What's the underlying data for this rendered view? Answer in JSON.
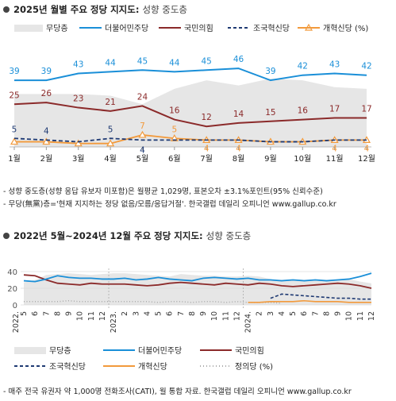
{
  "chart1": {
    "title": "2025년 월별 주요 정당 지지도:",
    "subtitle": "성향 중도층",
    "legend": [
      "무당층",
      "더불어민주당",
      "국민의힘",
      "조국혁신당",
      "개혁신당 (%)"
    ],
    "notes": [
      "- 성향 중도층(성향 응답 유보자 미포함)은 월평균 1,029명, 표본오차 ±3.1%포인트(95% 신뢰수준)",
      "- 무당(無黨)층='현재 지지하는 정당 없음/모름/응답거절'. 한국갤럽 데일리 오피니언 www.gallup.co.kr"
    ]
  },
  "chart2": {
    "title": "2022년 5월~2024년 12월 주요 정당 지지도:",
    "subtitle": "성향 중도층",
    "legend": [
      "무당층",
      "더불어민주당",
      "국민의힘",
      "조국혁신당",
      "개혁신당",
      "정의당 (%)"
    ],
    "notes": [
      "- 매주 전국 유권자 약 1,000명 전화조사(CATI), 월 통합 자료. 한국갤럽 데일리 오피니언 www.gallup.co.kr"
    ]
  },
  "colors": {
    "minju": "#1a8fd8",
    "ppp": "#8b2a2a",
    "rebuild": "#1f3a73",
    "reform": "#f29a3c",
    "justice": "#aaaaaa",
    "nonparty": "#e6e6e6"
  },
  "chart_data": [
    {
      "type": "line",
      "title": "2025년 월별 주요 정당 지지도: 성향 중도층",
      "categories": [
        "1월",
        "2월",
        "3월",
        "4월",
        "5월",
        "6월",
        "7월",
        "8월",
        "9월",
        "10월",
        "11월",
        "12월"
      ],
      "series": [
        {
          "name": "무당층",
          "type": "area",
          "values": [
            31,
            31,
            31,
            30,
            25,
            34,
            39,
            36,
            40,
            39,
            35,
            34
          ]
        },
        {
          "name": "더불어민주당",
          "values": [
            39,
            39,
            43,
            44,
            45,
            44,
            45,
            46,
            39,
            42,
            43,
            42
          ]
        },
        {
          "name": "국민의힘",
          "values": [
            25,
            26,
            23,
            21,
            24,
            16,
            12,
            14,
            15,
            16,
            17,
            17
          ]
        },
        {
          "name": "조국혁신당",
          "values": [
            5,
            4,
            3,
            5,
            4,
            4,
            4,
            4,
            3,
            3,
            4,
            4
          ]
        },
        {
          "name": "개혁신당",
          "values": [
            3,
            3,
            2,
            2,
            7,
            5,
            4,
            4,
            3,
            3,
            4,
            4
          ]
        }
      ],
      "data_labels": {
        "더불어민주당": [
          39,
          39,
          43,
          44,
          45,
          44,
          45,
          46,
          39,
          42,
          43,
          42
        ],
        "국민의힘": [
          25,
          26,
          23,
          21,
          24,
          16,
          12,
          14,
          15,
          16,
          17,
          17
        ],
        "조국혁신당": [
          5,
          4,
          null,
          5,
          4,
          null,
          null,
          null,
          null,
          null,
          null,
          null
        ],
        "개혁신당": [
          null,
          null,
          null,
          null,
          7,
          5,
          4,
          4,
          null,
          null,
          4,
          4
        ]
      },
      "legend_position": "top",
      "unit": "%"
    },
    {
      "type": "line",
      "title": "2022년 5월~2024년 12월 주요 정당 지지도: 성향 중도층",
      "yticks": [
        0,
        20,
        40
      ],
      "ylim": [
        0,
        40
      ],
      "x_labels": [
        "5",
        "6",
        "7",
        "8",
        "9",
        "10",
        "11",
        "12",
        "2",
        "3",
        "4",
        "5",
        "6",
        "7",
        "8",
        "9",
        "10",
        "11",
        "12",
        "2",
        "3",
        "4",
        "5",
        "6",
        "7",
        "8",
        "9",
        "10",
        "11",
        "12"
      ],
      "x_year_labels": [
        "2022.",
        "2023.",
        "2024."
      ],
      "categories": [
        "2022.5",
        "2022.6",
        "2022.7",
        "2022.8",
        "2022.9",
        "2022.10",
        "2022.11",
        "2022.12",
        "2023.1",
        "2023.2",
        "2023.3",
        "2023.4",
        "2023.5",
        "2023.6",
        "2023.7",
        "2023.8",
        "2023.9",
        "2023.10",
        "2023.11",
        "2023.12",
        "2024.1",
        "2024.2",
        "2024.3",
        "2024.4",
        "2024.5",
        "2024.6",
        "2024.7",
        "2024.8",
        "2024.9",
        "2024.10",
        "2024.11",
        "2024.12"
      ],
      "series": [
        {
          "name": "무당층",
          "type": "area",
          "values": [
            27,
            30,
            36,
            37,
            38,
            37,
            36,
            37,
            38,
            38,
            37,
            36,
            35,
            34,
            37,
            36,
            35,
            35,
            34,
            34,
            35,
            34,
            31,
            28,
            30,
            29,
            29,
            30,
            30,
            31,
            28,
            26
          ]
        },
        {
          "name": "더불어민주당",
          "values": [
            29,
            28,
            31,
            35,
            33,
            32,
            32,
            31,
            31,
            32,
            30,
            31,
            33,
            31,
            30,
            29,
            32,
            33,
            32,
            31,
            32,
            30,
            30,
            29,
            30,
            29,
            30,
            29,
            30,
            31,
            34,
            38
          ]
        },
        {
          "name": "국민의힘",
          "values": [
            36,
            35,
            30,
            26,
            25,
            24,
            26,
            25,
            25,
            25,
            24,
            23,
            24,
            26,
            27,
            26,
            25,
            24,
            26,
            25,
            24,
            26,
            25,
            23,
            22,
            23,
            24,
            25,
            26,
            25,
            23,
            20
          ]
        },
        {
          "name": "조국혁신당",
          "values": [
            null,
            null,
            null,
            null,
            null,
            null,
            null,
            null,
            null,
            null,
            null,
            null,
            null,
            null,
            null,
            null,
            null,
            null,
            null,
            null,
            null,
            null,
            8,
            13,
            12,
            11,
            10,
            9,
            8,
            8,
            7,
            7
          ]
        },
        {
          "name": "개혁신당",
          "values": [
            null,
            null,
            null,
            null,
            null,
            null,
            null,
            null,
            null,
            null,
            null,
            null,
            null,
            null,
            null,
            null,
            null,
            null,
            null,
            null,
            3,
            3,
            4,
            4,
            4,
            5,
            4,
            4,
            4,
            3,
            3,
            3
          ]
        },
        {
          "name": "정의당",
          "values": [
            4,
            4,
            4,
            4,
            5,
            4,
            4,
            4,
            4,
            4,
            4,
            4,
            3,
            4,
            4,
            3,
            4,
            4,
            3,
            4,
            3,
            3,
            3,
            2,
            null,
            null,
            null,
            null,
            null,
            null,
            null,
            null
          ]
        }
      ],
      "legend_position": "bottom",
      "unit": "%"
    }
  ]
}
